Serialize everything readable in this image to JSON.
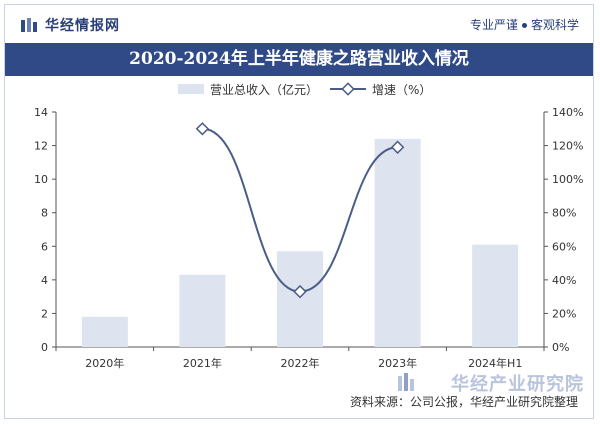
{
  "header": {
    "brand": "华经情报网",
    "tagline_left": "专业严谨",
    "tagline_right": "客观科学"
  },
  "title": "2020-2024年上半年健康之路营业收入情况",
  "source": "资料来源：公司公报，华经产业研究院整理",
  "watermark": "华经产业研究院",
  "colors": {
    "header_band": "#2f4a87",
    "bar": "#dde3ef",
    "line": "#4a5d86",
    "marker_fill": "#ffffff"
  },
  "chart_data": {
    "type": "bar",
    "categories": [
      "2020年",
      "2021年",
      "2022年",
      "2023年",
      "2024年H1"
    ],
    "series": [
      {
        "name": "营业总收入（亿元）",
        "type": "bar",
        "axis": "left",
        "values": [
          1.8,
          4.3,
          5.7,
          12.4,
          6.1
        ]
      },
      {
        "name": "增速（%）",
        "type": "line",
        "axis": "right",
        "values": [
          null,
          130,
          33,
          119,
          null
        ]
      }
    ],
    "y_left": {
      "min": 0,
      "max": 14,
      "ticks": [
        "0",
        "2",
        "4",
        "6",
        "8",
        "10",
        "12",
        "14"
      ]
    },
    "y_right": {
      "min": 0,
      "max": 140,
      "ticks": [
        "0%",
        "20%",
        "40%",
        "60%",
        "80%",
        "100%",
        "120%",
        "140%"
      ]
    },
    "legend": [
      "营业总收入（亿元）",
      "增速（%）"
    ],
    "legend_position": "top-center",
    "grid": false
  }
}
